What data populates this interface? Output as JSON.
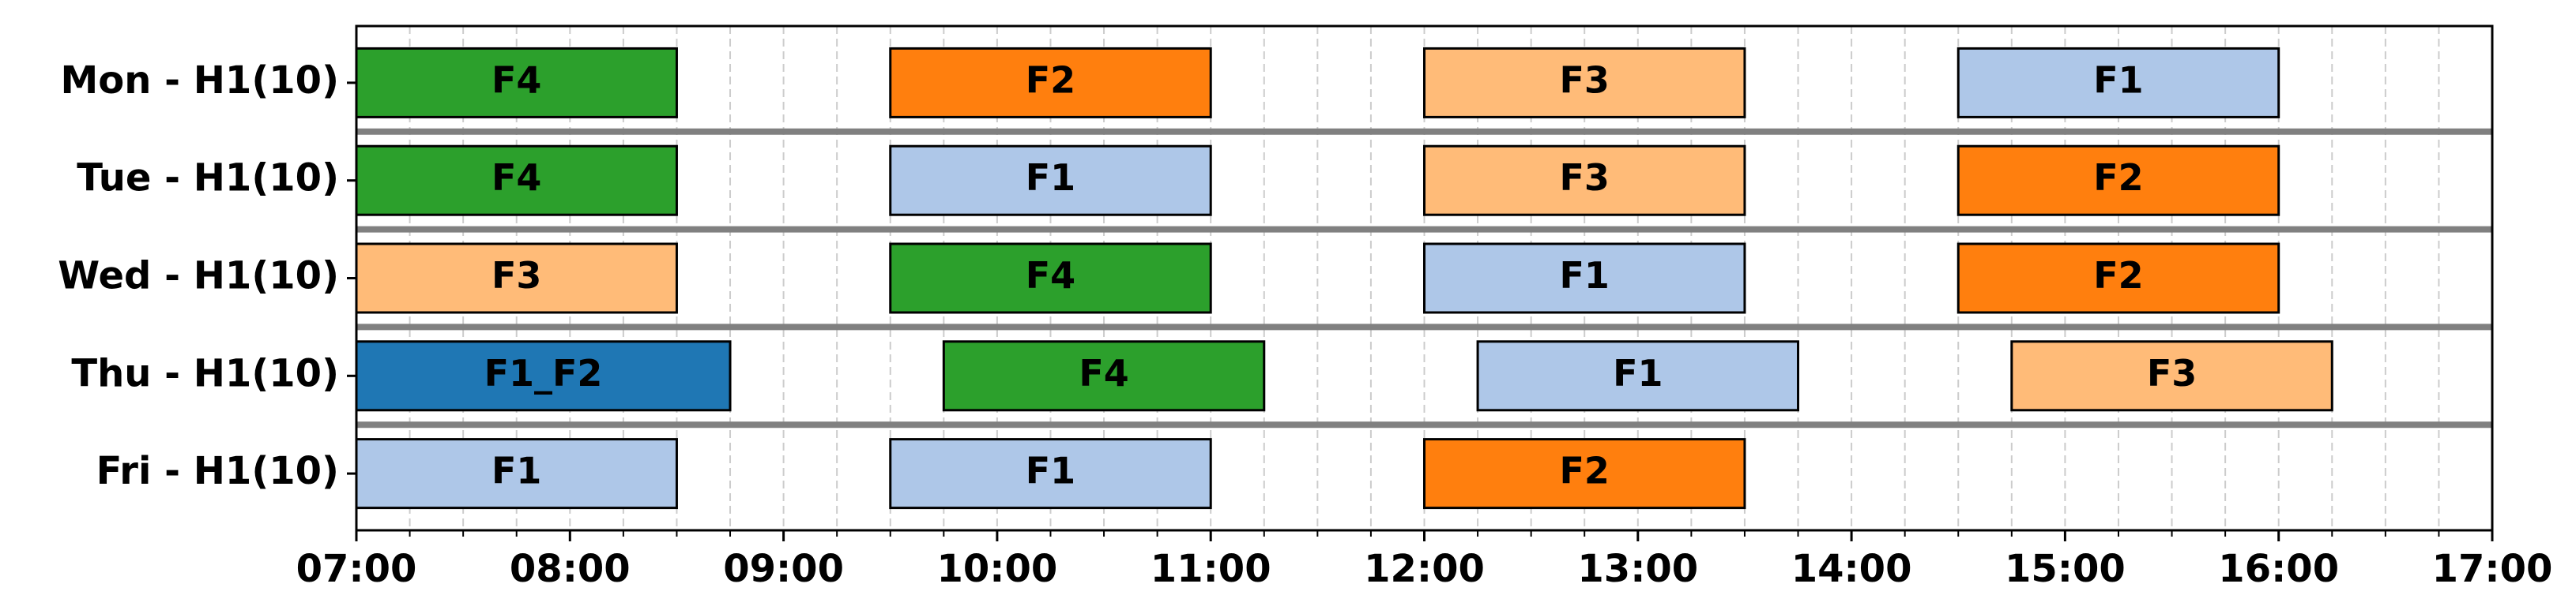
{
  "chart_data": {
    "type": "gantt",
    "categories": [
      "Mon - H1(10)",
      "Tue - H1(10)",
      "Wed - H1(10)",
      "Thu - H1(10)",
      "Fri - H1(10)"
    ],
    "xlim": [
      7,
      17
    ],
    "xticks": [
      {
        "value": 7,
        "label": "07:00"
      },
      {
        "value": 8,
        "label": "08:00"
      },
      {
        "value": 9,
        "label": "09:00"
      },
      {
        "value": 10,
        "label": "10:00"
      },
      {
        "value": 11,
        "label": "11:00"
      },
      {
        "value": 12,
        "label": "12:00"
      },
      {
        "value": 13,
        "label": "13:00"
      },
      {
        "value": 14,
        "label": "14:00"
      },
      {
        "value": 15,
        "label": "15:00"
      },
      {
        "value": 16,
        "label": "16:00"
      },
      {
        "value": 17,
        "label": "17:00"
      }
    ],
    "grid": true,
    "tasks": [
      {
        "row": 0,
        "label": "F4",
        "start": 7,
        "end": 8.5,
        "color": "#2ca02c"
      },
      {
        "row": 0,
        "label": "F2",
        "start": 9.5,
        "end": 11,
        "color": "#ff7f0e"
      },
      {
        "row": 0,
        "label": "F3",
        "start": 12,
        "end": 13.5,
        "color": "#ffbb78"
      },
      {
        "row": 0,
        "label": "F1",
        "start": 14.5,
        "end": 16,
        "color": "#aec7e8"
      },
      {
        "row": 1,
        "label": "F4",
        "start": 7,
        "end": 8.5,
        "color": "#2ca02c"
      },
      {
        "row": 1,
        "label": "F1",
        "start": 9.5,
        "end": 11,
        "color": "#aec7e8"
      },
      {
        "row": 1,
        "label": "F3",
        "start": 12,
        "end": 13.5,
        "color": "#ffbb78"
      },
      {
        "row": 1,
        "label": "F2",
        "start": 14.5,
        "end": 16,
        "color": "#ff7f0e"
      },
      {
        "row": 2,
        "label": "F3",
        "start": 7,
        "end": 8.5,
        "color": "#ffbb78"
      },
      {
        "row": 2,
        "label": "F4",
        "start": 9.5,
        "end": 11,
        "color": "#2ca02c"
      },
      {
        "row": 2,
        "label": "F1",
        "start": 12,
        "end": 13.5,
        "color": "#aec7e8"
      },
      {
        "row": 2,
        "label": "F2",
        "start": 14.5,
        "end": 16,
        "color": "#ff7f0e"
      },
      {
        "row": 3,
        "label": "F1_F2",
        "start": 7,
        "end": 8.75,
        "color": "#1f77b4"
      },
      {
        "row": 3,
        "label": "F4",
        "start": 9.75,
        "end": 11.25,
        "color": "#2ca02c"
      },
      {
        "row": 3,
        "label": "F1",
        "start": 12.25,
        "end": 13.75,
        "color": "#aec7e8"
      },
      {
        "row": 3,
        "label": "F3",
        "start": 14.75,
        "end": 16.25,
        "color": "#ffbb78"
      },
      {
        "row": 4,
        "label": "F1",
        "start": 7,
        "end": 8.5,
        "color": "#aec7e8"
      },
      {
        "row": 4,
        "label": "F1",
        "start": 9.5,
        "end": 11,
        "color": "#aec7e8"
      },
      {
        "row": 4,
        "label": "F2",
        "start": 12,
        "end": 13.5,
        "color": "#ff7f0e"
      }
    ]
  }
}
